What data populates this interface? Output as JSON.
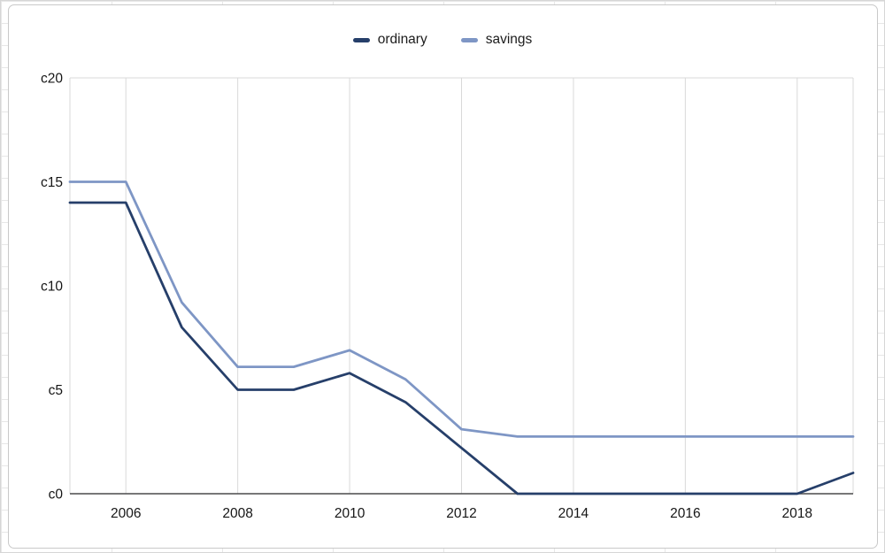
{
  "chart_data": {
    "type": "line",
    "title": "",
    "xlabel": "",
    "ylabel": "",
    "x": [
      2005,
      2006,
      2007,
      2008,
      2009,
      2010,
      2011,
      2012,
      2013,
      2014,
      2015,
      2016,
      2017,
      2018,
      2019
    ],
    "series": [
      {
        "name": "ordinary",
        "color": "#263f6a",
        "values": [
          14,
          14,
          8,
          5,
          5,
          5.8,
          4.4,
          2.2,
          0,
          0,
          0,
          0,
          0,
          0,
          1
        ]
      },
      {
        "name": "savings",
        "color": "#7e96c5",
        "values": [
          15,
          15,
          9.2,
          6.1,
          6.1,
          6.9,
          5.5,
          3.1,
          2.75,
          2.75,
          2.75,
          2.75,
          2.75,
          2.75,
          2.75
        ]
      }
    ],
    "xticks": [
      2006,
      2008,
      2010,
      2012,
      2014,
      2016,
      2018
    ],
    "yticks": [
      0,
      5,
      10,
      15,
      20
    ],
    "ytick_labels": [
      "c0",
      "c5",
      "c10",
      "c15",
      "c20"
    ],
    "xlim": [
      2005,
      2019
    ],
    "ylim": [
      0,
      20
    ],
    "legend": {
      "position": "top-center",
      "entries": [
        "ordinary",
        "savings"
      ]
    },
    "style": {
      "grid_color": "#d9d9d9",
      "axis_color": "#4a4a4c",
      "tick_color": "#161616",
      "plot_background": "#ffffff",
      "line_width": 2.8
    }
  }
}
